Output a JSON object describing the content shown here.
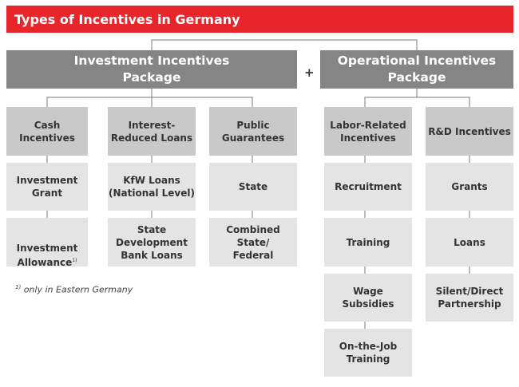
{
  "title": "Types of Incentives in Germany",
  "plus": "+",
  "packages": {
    "investment": "Investment Incentives\nPackage",
    "operational": "Operational Incentives\nPackage"
  },
  "columns": {
    "cash": {
      "header": "Cash\nIncentives",
      "items": [
        "Investment\nGrant",
        "Investment\nAllowance"
      ]
    },
    "loans": {
      "header": "Interest-\nReduced Loans",
      "items": [
        "KfW Loans\n(National Level)",
        "State\nDevelopment\nBank Loans"
      ]
    },
    "guarantees": {
      "header": "Public\nGuarantees",
      "items": [
        "State",
        "Combined State/\nFederal"
      ]
    },
    "labor": {
      "header": "Labor-Related\nIncentives",
      "items": [
        "Recruitment",
        "Training",
        "Wage\nSubsidies",
        "On-the-Job\nTraining"
      ]
    },
    "rd": {
      "header": "R&D Incentives",
      "items": [
        "Grants",
        "Loans",
        "Silent/Direct\nPartnership"
      ]
    }
  },
  "footnote": {
    "marker": "1)",
    "text": "only in Eastern Germany",
    "ref": "1)"
  },
  "colors": {
    "title_bg": "#e8252b",
    "package_bg": "#858585",
    "category_bg": "#c9c9c9",
    "item_bg": "#e4e4e4"
  }
}
